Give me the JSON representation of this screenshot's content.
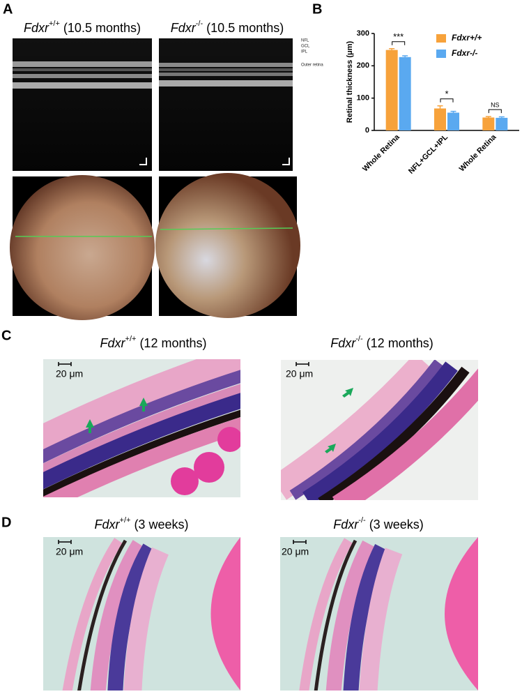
{
  "panels": {
    "A": {
      "label": "A",
      "left_title": {
        "gene": "Fdxr",
        "genotype": "+/+",
        "detail": "(10.5 months)"
      },
      "right_title": {
        "gene": "Fdxr",
        "genotype": "-/-",
        "detail": "(10.5 months)"
      },
      "layer_labels": [
        "NFL",
        "GCL",
        "IPL",
        "Outer retina"
      ]
    },
    "B": {
      "label": "B"
    },
    "C": {
      "label": "C",
      "left_title": {
        "gene": "Fdxr",
        "genotype": "+/+",
        "detail": "(12 months)"
      },
      "right_title": {
        "gene": "Fdxr",
        "genotype": "-/-",
        "detail": "(12 months)"
      },
      "left_scale": "20 μm",
      "right_scale": "20 μm"
    },
    "D": {
      "label": "D",
      "left_title": {
        "gene": "Fdxr",
        "genotype": "+/+",
        "detail": "(3 weeks)"
      },
      "right_title": {
        "gene": "Fdxr",
        "genotype": "-/-",
        "detail": "(3 weeks)"
      },
      "left_scale": "20 μm",
      "right_scale": "20 μm"
    }
  },
  "chart_data": {
    "type": "bar",
    "y_label": "Retinal thickness (μm)",
    "categories": [
      "Whole Retina",
      "NFL+GCL+IPL",
      "Whole Retina"
    ],
    "series": [
      {
        "name": "Fdxr+/+",
        "color": "#f7a23b",
        "values": [
          249,
          68,
          40
        ],
        "errors": [
          4,
          8,
          3
        ]
      },
      {
        "name": "Fdxr-/-",
        "color": "#5aa9f0",
        "values": [
          227,
          55,
          39
        ],
        "errors": [
          4,
          4,
          3
        ]
      }
    ],
    "annotations": [
      {
        "text": "***",
        "category": 0
      },
      {
        "text": "*",
        "category": 1
      },
      {
        "text": "NS",
        "category": 2
      }
    ],
    "ylim": [
      0,
      300
    ],
    "yticks": [
      0,
      100,
      200,
      300
    ],
    "legend": "top-right"
  }
}
